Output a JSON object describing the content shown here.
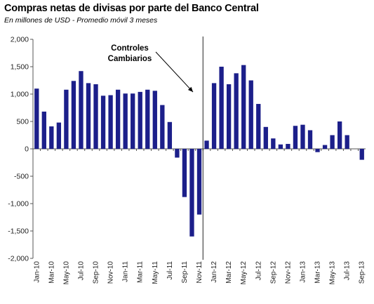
{
  "chart_data": {
    "type": "bar",
    "title": "Compras netas de divisas por parte del Banco Central",
    "subtitle": "En millones de USD - Promedio móvil 3 meses",
    "xlabel": "",
    "ylabel": "",
    "ylim": [
      -2000,
      2000
    ],
    "yticks": [
      "2,000",
      "1,500",
      "1,000",
      "500",
      "0",
      "-500",
      "-1,000",
      "-1,500",
      "-2,000"
    ],
    "ytick_values": [
      2000,
      1500,
      1000,
      500,
      0,
      -500,
      -1000,
      -1500,
      -2000
    ],
    "grid": false,
    "bar_color": "#1c1f8a",
    "categories": [
      "Jan-10",
      "Feb-10",
      "Mar-10",
      "Apr-10",
      "May-10",
      "Jun-10",
      "Jul-10",
      "Aug-10",
      "Sep-10",
      "Oct-10",
      "Nov-10",
      "Dec-10",
      "Jan-11",
      "Feb-11",
      "Mar-11",
      "Apr-11",
      "May-11",
      "Jun-11",
      "Jul-11",
      "Aug-11",
      "Sep-11",
      "Oct-11",
      "Nov-11",
      "Dec-11",
      "Jan-12",
      "Feb-12",
      "Mar-12",
      "Apr-12",
      "May-12",
      "Jun-12",
      "Jul-12",
      "Aug-12",
      "Sep-12",
      "Oct-12",
      "Nov-12",
      "Dec-12",
      "Jan-13",
      "Feb-13",
      "Mar-13",
      "Apr-13",
      "May-13",
      "Jun-13",
      "Jul-13",
      "Aug-13",
      "Sep-13"
    ],
    "xtick_labels": [
      "Jan-10",
      "Mar-10",
      "May-10",
      "Jul-10",
      "Sep-10",
      "Nov-10",
      "Jan-11",
      "Mar-11",
      "May-11",
      "Jul-11",
      "Sep-11",
      "Nov-11",
      "Jan-12",
      "Mar-12",
      "May-12",
      "Jul-12",
      "Sep-12",
      "Nov-12",
      "Jan-13",
      "Mar-13",
      "May-13",
      "Jul-13",
      "Sep-13"
    ],
    "values": [
      1100,
      680,
      410,
      480,
      1080,
      1240,
      1420,
      1200,
      1180,
      970,
      980,
      1080,
      1010,
      1010,
      1040,
      1080,
      1060,
      800,
      490,
      -160,
      -880,
      -1600,
      -1200,
      150,
      1200,
      1500,
      1180,
      1380,
      1530,
      1250,
      820,
      400,
      190,
      80,
      90,
      420,
      440,
      340,
      -60,
      70,
      250,
      500,
      250,
      0,
      -200
    ],
    "annotation": {
      "text_line1": "Controles",
      "text_line2": "Cambiarios",
      "divider_after": "Nov-11"
    }
  }
}
